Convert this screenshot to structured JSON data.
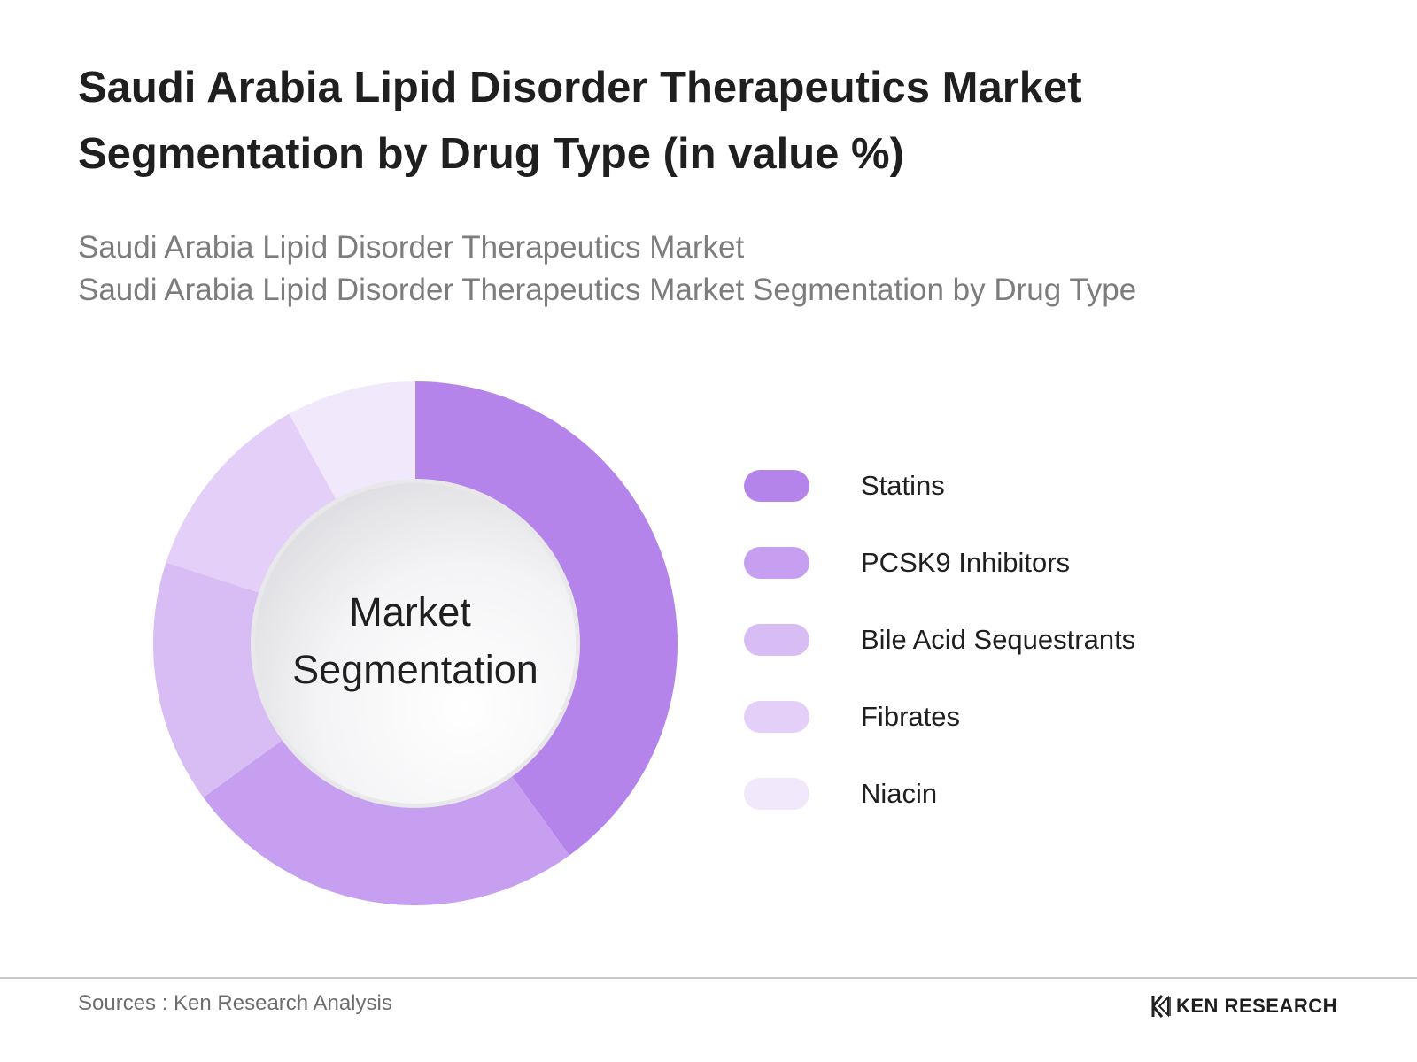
{
  "header": {
    "title": "Saudi Arabia Lipid Disorder Therapeutics Market Segmentation by Drug Type (in value %)",
    "subtitle_line1": "Saudi Arabia Lipid Disorder Therapeutics Market",
    "subtitle_line2": "Saudi Arabia Lipid Disorder Therapeutics Market Segmentation by Drug Type"
  },
  "chart_data": {
    "type": "pie",
    "style": "donut",
    "center_label_line1": "Market",
    "center_label_line2": "Segmentation",
    "categories": [
      "Statins",
      "PCSK9 Inhibitors",
      "Bile Acid Sequestrants",
      "Fibrates",
      "Niacin"
    ],
    "values": [
      40,
      25,
      15,
      12,
      8
    ],
    "colors": [
      "#b584eb",
      "#c69ff0",
      "#d8bcf4",
      "#e3cff7",
      "#f1e8fb"
    ],
    "legend_position": "right"
  },
  "footer": {
    "source": "Sources : Ken Research Analysis",
    "brand": "KEN RESEARCH"
  }
}
